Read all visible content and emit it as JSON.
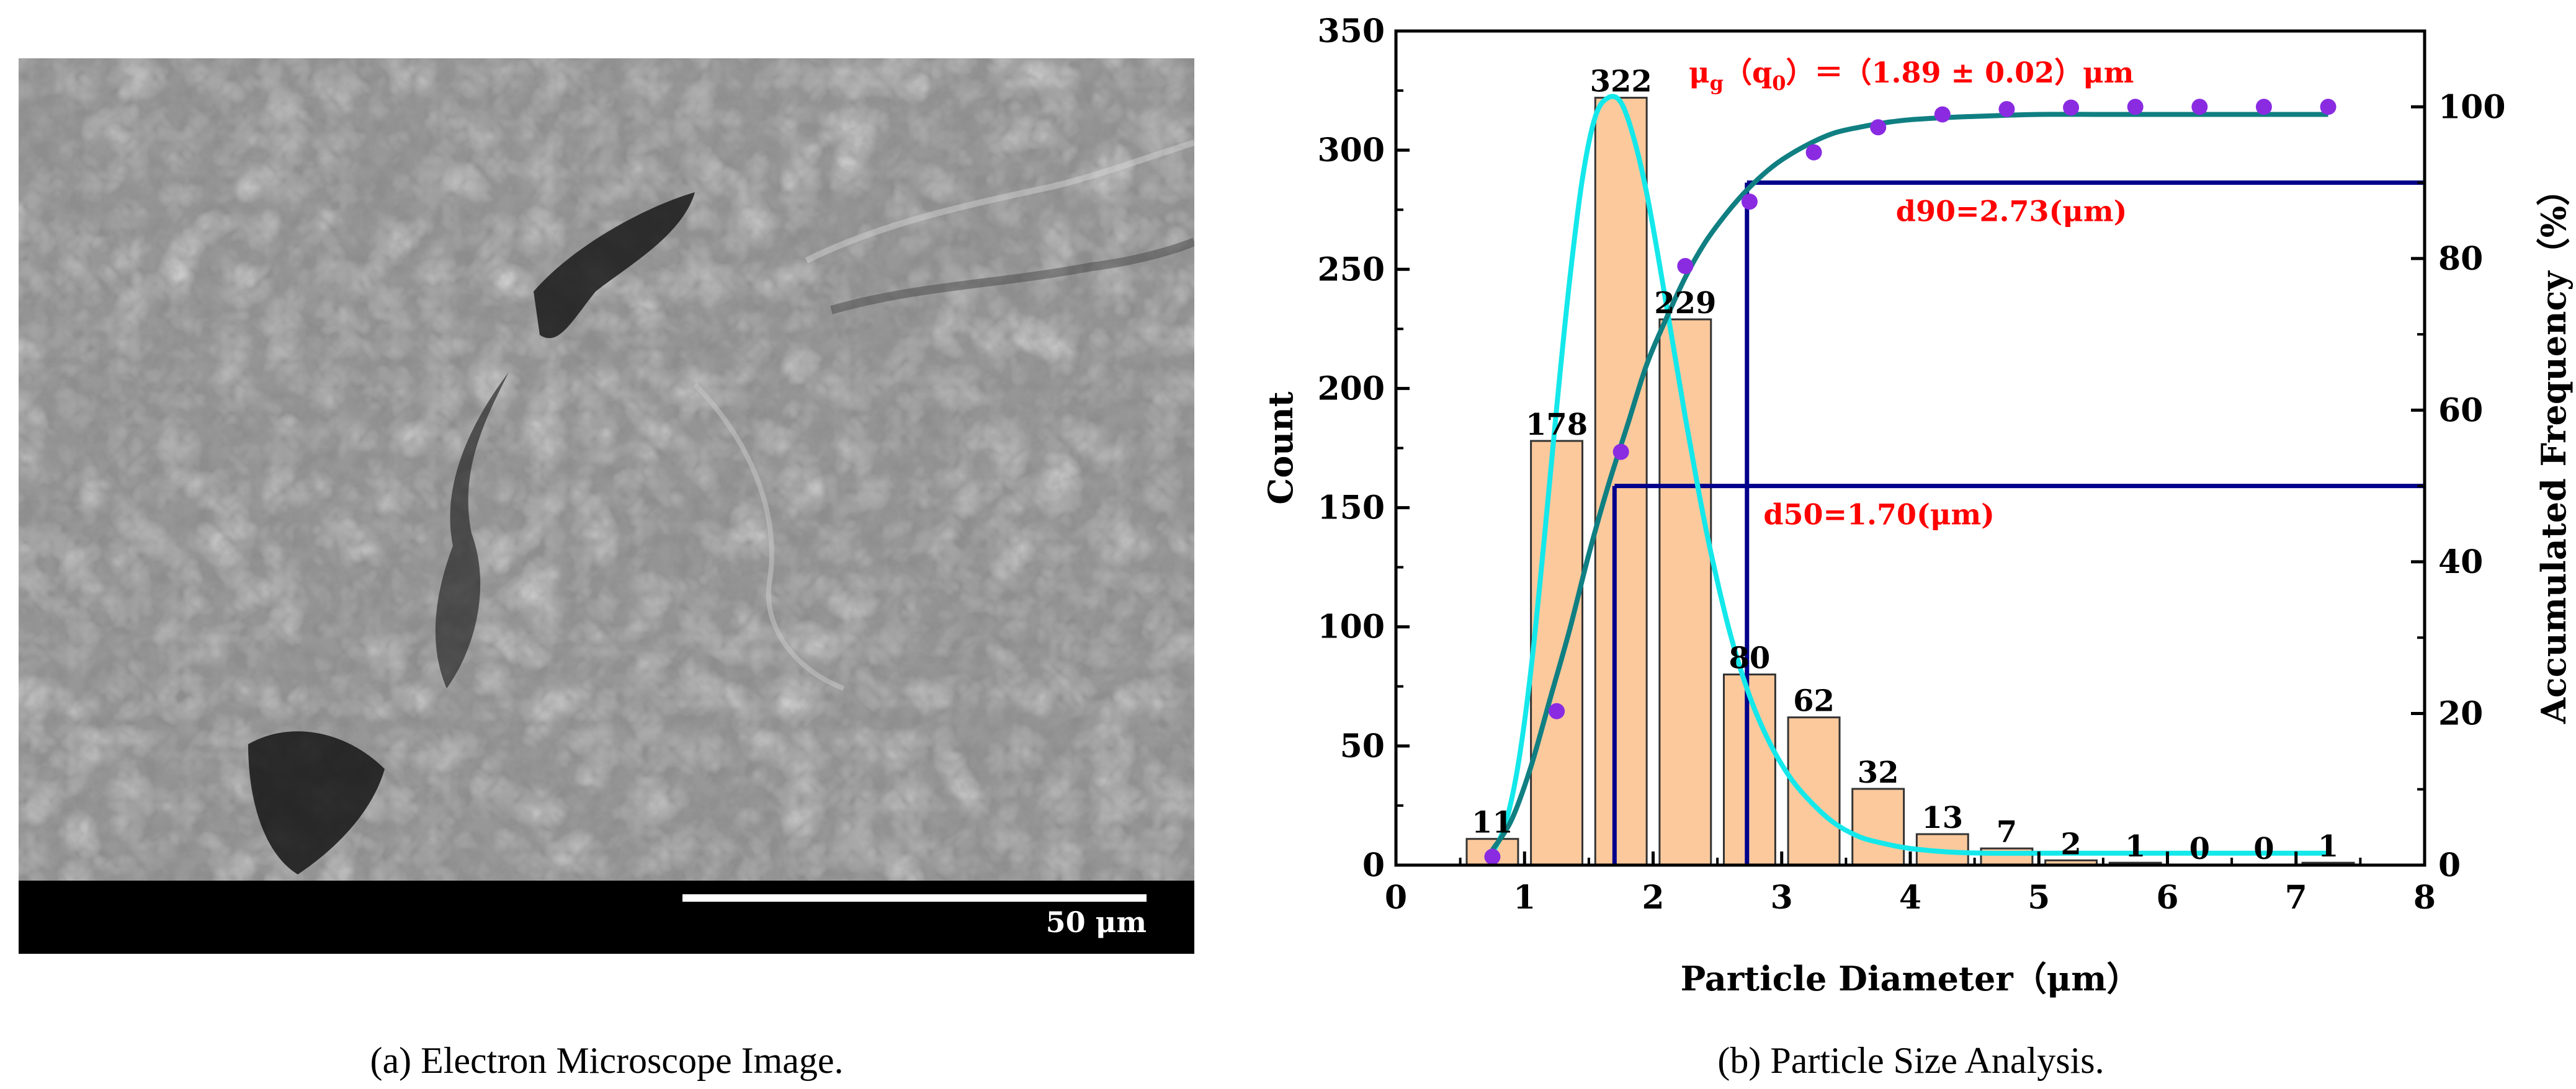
{
  "panel_a": {
    "scale_bar_label": "50 μm",
    "caption_letter": "(a)",
    "caption_text": " Electron Microscope Image."
  },
  "panel_b": {
    "caption_letter": "(b)",
    "caption_text": " Particle Size Analysis."
  },
  "colors": {
    "bar_fill": "#fbc99c",
    "bar_stroke": "#333333",
    "pdf_curve": "#14e8ea",
    "cdf_curve": "#0f7f82",
    "cdf_points": "#8a2be2",
    "guide_lines": "#00008b",
    "annotation": "#ff0000"
  },
  "chart_data": {
    "type": "bar",
    "title": "",
    "xlabel": "Particle Diameter（μm）",
    "ylabel": "Count",
    "y2label": "Accumulated Frequency（%）",
    "xlim": [
      0,
      8
    ],
    "ylim": [
      0,
      350
    ],
    "y2lim": [
      0,
      110
    ],
    "xticks": [
      0,
      1,
      2,
      3,
      4,
      5,
      6,
      7,
      8
    ],
    "yticks": [
      0,
      50,
      100,
      150,
      200,
      250,
      300,
      350
    ],
    "y2ticks": [
      0,
      20,
      40,
      60,
      80,
      100
    ],
    "bar_width": 0.4,
    "bins": [
      0.75,
      1.25,
      1.75,
      2.25,
      2.75,
      3.25,
      3.75,
      4.25,
      4.75,
      5.25,
      5.75,
      6.25,
      6.75,
      7.25
    ],
    "counts": [
      11,
      178,
      322,
      229,
      80,
      62,
      32,
      13,
      7,
      2,
      1,
      0,
      0,
      1
    ],
    "count_labels": [
      "11",
      "178",
      "322",
      "229",
      "80",
      "62",
      "32",
      "13",
      "7",
      "2",
      "1",
      "0",
      "0",
      "1"
    ],
    "cumulative_points": {
      "x": [
        0.75,
        1.25,
        1.75,
        2.25,
        2.75,
        3.25,
        3.75,
        4.25,
        4.75,
        5.25,
        5.75,
        6.25,
        6.75,
        7.25
      ],
      "y": [
        1.1,
        20.3,
        54.5,
        79,
        87.5,
        94,
        97.3,
        99,
        99.7,
        99.9,
        100,
        100,
        100,
        100
      ]
    },
    "pdf_curve": {
      "x": [
        0.75,
        0.85,
        0.95,
        1.05,
        1.15,
        1.25,
        1.35,
        1.45,
        1.55,
        1.65,
        1.75,
        1.85,
        1.95,
        2.05,
        2.15,
        2.25,
        2.35,
        2.45,
        2.6,
        2.75,
        2.9,
        3.05,
        3.2,
        3.4,
        3.6,
        3.8,
        4.0,
        4.3,
        4.6,
        5.0,
        5.5,
        6.0,
        6.5,
        7.0,
        7.25
      ],
      "y": [
        5,
        17,
        42,
        82,
        135,
        192,
        245,
        288,
        314,
        322,
        320,
        305,
        282,
        252,
        220,
        188,
        158,
        131,
        97,
        71,
        52,
        38,
        28,
        18,
        12,
        9,
        7,
        5.5,
        5,
        5,
        5,
        5,
        5,
        5,
        5
      ]
    },
    "cdf_curve": {
      "x": [
        0.75,
        0.9,
        1.05,
        1.2,
        1.35,
        1.5,
        1.65,
        1.8,
        1.95,
        2.1,
        2.25,
        2.4,
        2.55,
        2.7,
        2.85,
        3.0,
        3.2,
        3.4,
        3.6,
        3.8,
        4.0,
        4.3,
        4.6,
        5.0,
        5.5,
        6.0,
        6.5,
        7.0,
        7.25
      ],
      "y": [
        2,
        6,
        13,
        22,
        31,
        41,
        50,
        58,
        66,
        72,
        77.5,
        82,
        85.5,
        88.5,
        91,
        93,
        95,
        96.5,
        97.3,
        97.9,
        98.3,
        98.6,
        98.8,
        99,
        99,
        99,
        99,
        99,
        99
      ]
    },
    "guide_lines": [
      {
        "label": "d50=1.70(μm)",
        "x": 1.7,
        "y_percent": 50
      },
      {
        "label": "d90=2.73(μm)",
        "x": 2.73,
        "y_percent": 90
      }
    ],
    "annotation_mu": {
      "symbol": "μ",
      "sub1": "g",
      "open": "（q",
      "sub2": "0",
      "rest": "）＝（1.89 ± 0.02）μm"
    }
  }
}
